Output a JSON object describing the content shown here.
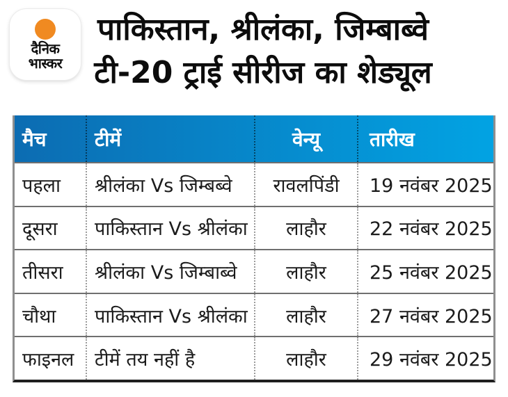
{
  "logo": {
    "line1": "दैनिक",
    "line2": "भास्कर",
    "sun_color": "#f08a21"
  },
  "title": {
    "line1": "पाकिस्तान, श्रीलंका, जिम्बाब्वे",
    "line2": "टी-20 ट्राई सीरीज का शेड्यूल"
  },
  "chart_data": {
    "type": "table",
    "title": "पाकिस्तान, श्रीलंका, जिम्बाब्वे टी-20 ट्राई सीरीज का शेड्यूल",
    "columns": [
      "मैच",
      "टीमें",
      "वेन्यू",
      "तारीख"
    ],
    "rows": [
      [
        "पहला",
        "श्रीलंका Vs जिम्बब्वे",
        "रावलपिंडी",
        "19 नवंबर 2025"
      ],
      [
        "दूसरा",
        "पाकिस्तान Vs श्रीलंका",
        "लाहौर",
        "22 नवंबर 2025"
      ],
      [
        "तीसरा",
        "श्रीलंका Vs जिम्बाब्वे",
        "लाहौर",
        "25 नवंबर 2025"
      ],
      [
        "चौथा",
        "पाकिस्तान Vs श्रीलंका",
        "लाहौर",
        "27 नवंबर 2025"
      ],
      [
        "फाइनल",
        "टीमें तय नहीं है",
        "लाहौर",
        "29 नवंबर 2025"
      ]
    ],
    "layout": {
      "header_background": "gradient",
      "grid": "horizontal-solid, vertical-dotted"
    }
  },
  "colors": {
    "header_gradient_left": "#0c6cb2",
    "header_gradient_right": "#02a3e3",
    "header_text": "#ffffff",
    "body_text": "#1b1b1b",
    "accent_orange": "#f08a21"
  }
}
